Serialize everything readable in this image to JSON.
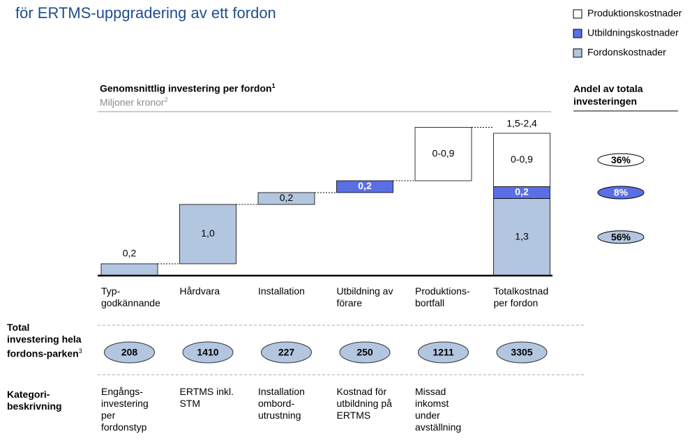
{
  "heading": "för ERTMS-uppgradering av ett fordon",
  "chart_data": {
    "type": "waterfall",
    "title": "Genomsnittlig investering per fordon",
    "title_sup": "1",
    "subtitle": "Miljoner kronor",
    "subtitle_sup": "2",
    "categories": [
      "Typ-godkännande",
      "Hårdvara",
      "Installation",
      "Utbildning av förare",
      "Produktions-bortfall",
      "Totalkostnad per fordon"
    ],
    "series": [
      {
        "name": "Fordonskostnader",
        "color": "#b3c6e0",
        "values": [
          0.2,
          1.0,
          0.2,
          null,
          null,
          1.3
        ],
        "value_labels": [
          "0,2",
          "1,0",
          "0,2",
          null,
          null,
          "1,3"
        ]
      },
      {
        "name": "Utbildningskostnader",
        "color": "#5a6ee6",
        "values": [
          null,
          null,
          null,
          0.2,
          null,
          0.2
        ],
        "value_labels": [
          null,
          null,
          null,
          "0,2",
          null,
          "0,2"
        ]
      },
      {
        "name": "Produktionskostnader",
        "color": "#ffffff",
        "values": [
          null,
          null,
          null,
          null,
          0.9,
          0.9
        ],
        "value_labels": [
          null,
          null,
          null,
          null,
          "0-0,9",
          "0-0,9"
        ]
      }
    ],
    "total_label": "1,5-2,4",
    "ylim": [
      0,
      2.6
    ],
    "shares_title": "Andel av totala investeringen",
    "share_labels": [
      "56%",
      "8%",
      "36%"
    ]
  },
  "rows": [
    {
      "label": "Total investering hela fordons-parken",
      "label_sup": "3",
      "cells": [
        "208",
        "1410",
        "227",
        "250",
        "1211",
        "3305"
      ]
    },
    {
      "label": "Kategori-beskrivning",
      "cells": [
        "Engångs-investering per fordonstyp",
        "ERTMS inkl. STM",
        "Installation ombord-utrustning",
        "Kostnad för utbildning på ERTMS",
        "Missad inkomst under avställning"
      ]
    }
  ]
}
